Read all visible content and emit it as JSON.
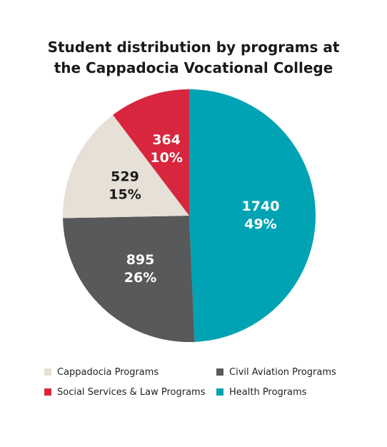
{
  "chart_data": {
    "type": "pie",
    "title_lines": [
      "Student distribution by programs at",
      "the Cappadocia Vocational College"
    ],
    "slices": [
      {
        "name": "Health Programs",
        "value": 1740,
        "percent": "49%",
        "color": "#00a3b4"
      },
      {
        "name": "Civil Aviation Programs",
        "value": 895,
        "percent": "26%",
        "color": "#58595b"
      },
      {
        "name": "Cappadocia Programs",
        "value": 529,
        "percent": "15%",
        "color": "#e6e0d6"
      },
      {
        "name": "Social Services & Law Programs",
        "value": 364,
        "percent": "10%",
        "color": "#d7263d"
      }
    ],
    "legend": [
      "Cappadocia Programs",
      "Civil Aviation Programs",
      "Social Services & Law Programs",
      "Health Programs"
    ]
  }
}
